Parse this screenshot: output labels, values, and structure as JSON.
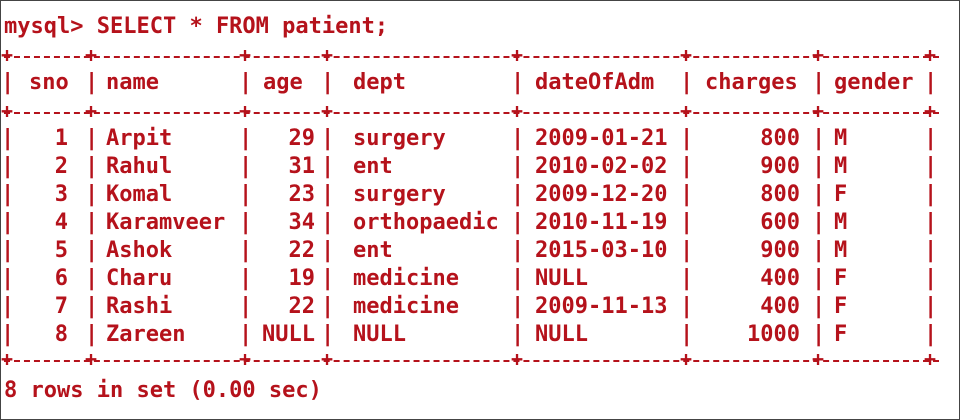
{
  "terminal": {
    "prompt": "mysql>",
    "command": "SELECT * FROM patient;",
    "footer": "8 rows in set (0.00 sec)",
    "text_color": "#b5121b",
    "background": "#ffffff"
  },
  "table": {
    "columns": [
      "sno",
      "name",
      "age",
      "dept",
      "dateOfAdm",
      "charges",
      "gender"
    ],
    "rows": [
      [
        "1",
        "Arpit",
        "29",
        "surgery",
        "2009-01-21",
        "800",
        "M"
      ],
      [
        "2",
        "Rahul",
        "31",
        "ent",
        "2010-02-02",
        "900",
        "M"
      ],
      [
        "3",
        "Komal",
        "23",
        "surgery",
        "2009-12-20",
        "800",
        "F"
      ],
      [
        "4",
        "Karamveer",
        "34",
        "orthopaedic",
        "2010-11-19",
        "600",
        "M"
      ],
      [
        "5",
        "Ashok",
        "22",
        "ent",
        "2015-03-10",
        "900",
        "M"
      ],
      [
        "6",
        "Charu",
        "19",
        "medicine",
        "NULL",
        "400",
        "F"
      ],
      [
        "7",
        "Rashi",
        "22",
        "medicine",
        "2009-11-13",
        "400",
        "F"
      ],
      [
        "8",
        "Zareen",
        "NULL",
        "NULL",
        "NULL",
        "1000",
        "F"
      ]
    ]
  }
}
